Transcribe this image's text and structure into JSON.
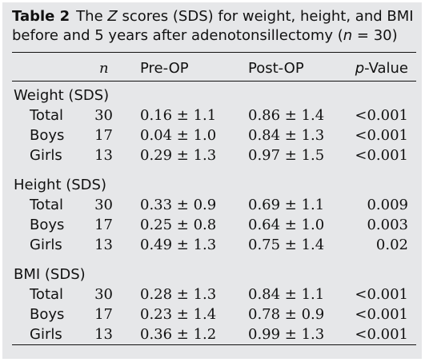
{
  "caption": {
    "label": "Table 2",
    "line1_a": "The ",
    "line1_z": "Z",
    "line1_b": " scores (SDS) for weight, height, and BMI",
    "line2_a": "before and 5 years after adenotonsillectomy (",
    "line2_n": "n",
    "line2_b": " = 30)"
  },
  "columns": [
    "n",
    "Pre-OP",
    "Post-OP",
    "p-Value"
  ],
  "col_pval_p": "p",
  "col_pval_rest": "-Value",
  "groups": [
    {
      "title": "Weight (SDS)",
      "rows": [
        {
          "label": "Total",
          "n": "30",
          "pre": "0.16 ± 1.1",
          "post": "0.86 ± 1.4",
          "p": "<0.001"
        },
        {
          "label": "Boys",
          "n": "17",
          "pre": "0.04 ± 1.0",
          "post": "0.84 ± 1.3",
          "p": "<0.001"
        },
        {
          "label": "Girls",
          "n": "13",
          "pre": "0.29 ± 1.3",
          "post": "0.97 ± 1.5",
          "p": "<0.001"
        }
      ]
    },
    {
      "title": "Height (SDS)",
      "rows": [
        {
          "label": "Total",
          "n": "30",
          "pre": "0.33 ± 0.9",
          "post": "0.69 ± 1.1",
          "p": "0.009"
        },
        {
          "label": "Boys",
          "n": "17",
          "pre": "0.25 ± 0.8",
          "post": "0.64 ± 1.0",
          "p": "0.003"
        },
        {
          "label": "Girls",
          "n": "13",
          "pre": "0.49 ± 1.3",
          "post": "0.75 ± 1.4",
          "p": "0.02"
        }
      ]
    },
    {
      "title": "BMI (SDS)",
      "rows": [
        {
          "label": "Total",
          "n": "30",
          "pre": "0.28 ± 1.3",
          "post": "0.84 ± 1.1",
          "p": "<0.001"
        },
        {
          "label": "Boys",
          "n": "17",
          "pre": "0.23 ± 1.4",
          "post": "0.78 ± 0.9",
          "p": "<0.001"
        },
        {
          "label": "Girls",
          "n": "13",
          "pre": "0.36 ± 1.2",
          "post": "0.99 ± 1.3",
          "p": "<0.001"
        }
      ]
    }
  ]
}
